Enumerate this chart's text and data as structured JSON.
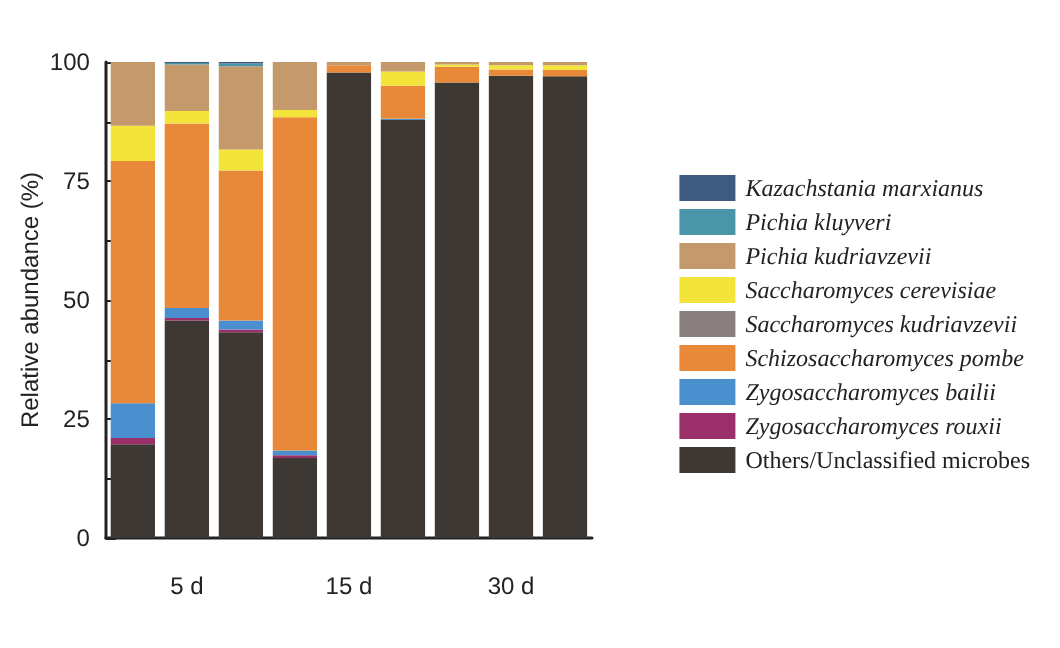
{
  "chart_data": {
    "type": "bar",
    "stacked": true,
    "ylabel": "Relative abundance (%)",
    "categories": [
      null,
      "5 d",
      null,
      null,
      "15 d",
      null,
      null,
      "30 d",
      null
    ],
    "ylim": [
      0,
      100
    ],
    "yticks": [
      0,
      {
        "value": 12.5,
        "label": null
      },
      25,
      {
        "value": 37.5,
        "label": null
      },
      50,
      {
        "value": 62.5,
        "label": null
      },
      75,
      {
        "value": 87.5,
        "label": null
      },
      100
    ],
    "legend": "right",
    "grid": false,
    "series": [
      {
        "name": "Others/Unclassified microbes",
        "color": "#3d3833",
        "values": [
          19.7,
          45.7,
          43.2,
          16.8,
          97.8,
          87.8,
          95.7,
          97.1,
          97.0
        ]
      },
      {
        "name": "Zygosaccharomyces rouxii",
        "color": "#9b2f6a",
        "values": [
          1.3,
          0.5,
          0.6,
          0.6,
          0,
          0,
          0,
          0,
          0
        ]
      },
      {
        "name": "Zygosaccharomyces bailii",
        "color": "#4a90cf",
        "values": [
          7.3,
          2.1,
          1.9,
          1.0,
          0,
          0.3,
          0,
          0,
          0
        ]
      },
      {
        "name": "Schizosaccharomyces pombe",
        "color": "#e8893a",
        "values": [
          50.9,
          38.8,
          31.5,
          70.0,
          1.5,
          6.9,
          3.3,
          1.3,
          1.3
        ]
      },
      {
        "name": "Saccharomyces kudriavzevii",
        "color": "#8a7f7f",
        "values": [
          0,
          0,
          0,
          0,
          0,
          0,
          0,
          0,
          0
        ]
      },
      {
        "name": "Saccharomyces cerevisiae",
        "color": "#f2e43a",
        "values": [
          7.4,
          2.6,
          4.4,
          1.5,
          0,
          3.0,
          0.5,
          0.9,
          1.0
        ]
      },
      {
        "name": "Pichia kudriavzevii",
        "color": "#c49a6c",
        "values": [
          13.4,
          9.8,
          17.5,
          10.1,
          0.7,
          2.0,
          0.5,
          0.7,
          0.7
        ]
      },
      {
        "name": "Pichia kluyveri",
        "color": "#4a95a8",
        "values": [
          0,
          0.3,
          0.6,
          0,
          0,
          0,
          0,
          0,
          0
        ]
      },
      {
        "name": "Kazachstania marxianus",
        "color": "#3e5a7e",
        "values": [
          0,
          0.2,
          0.3,
          0,
          0,
          0,
          0,
          0,
          0
        ]
      }
    ]
  }
}
